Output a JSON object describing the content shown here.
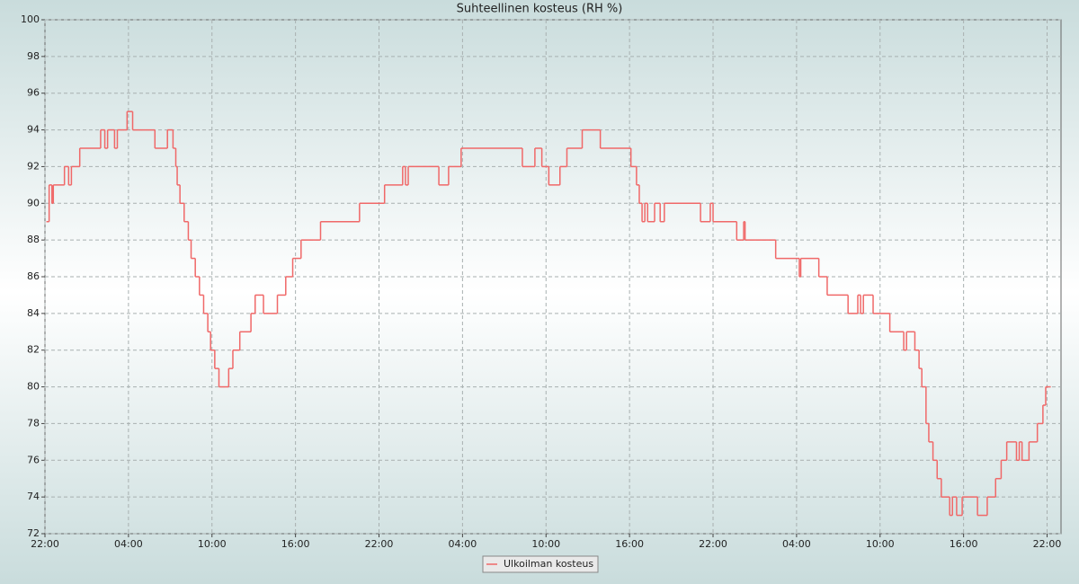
{
  "chart_data": {
    "type": "step-line",
    "title": "Suhteellinen kosteus (RH %)",
    "xlim": [
      0,
      73
    ],
    "xticks": [
      {
        "value": 0,
        "label": "22:00"
      },
      {
        "value": 6,
        "label": "04:00"
      },
      {
        "value": 12,
        "label": "10:00"
      },
      {
        "value": 18,
        "label": "16:00"
      },
      {
        "value": 24,
        "label": "22:00"
      },
      {
        "value": 30,
        "label": "04:00"
      },
      {
        "value": 36,
        "label": "10:00"
      },
      {
        "value": 42,
        "label": "16:00"
      },
      {
        "value": 48,
        "label": "22:00"
      },
      {
        "value": 54,
        "label": "04:00"
      },
      {
        "value": 60,
        "label": "10:00"
      },
      {
        "value": 66,
        "label": "16:00"
      },
      {
        "value": 72,
        "label": "22:00"
      }
    ],
    "ylim": [
      72,
      100
    ],
    "yticks": [
      72,
      74,
      76,
      78,
      80,
      82,
      84,
      86,
      88,
      90,
      92,
      94,
      96,
      98,
      100
    ],
    "grid": true,
    "legend": "bottom",
    "x": [
      0.1,
      0.3,
      0.5,
      0.6,
      1.4,
      1.7,
      1.9,
      2.5,
      4.0,
      4.3,
      4.5,
      5.0,
      5.2,
      5.9,
      6.3,
      7.9,
      8.8,
      9.2,
      9.4,
      9.5,
      9.7,
      10.0,
      10.3,
      10.5,
      10.8,
      11.1,
      11.4,
      11.7,
      11.9,
      12.2,
      12.5,
      13.2,
      13.5,
      14.0,
      14.8,
      15.1,
      15.7,
      16.7,
      17.3,
      17.8,
      18.4,
      19.8,
      22.6,
      24.4,
      25.7,
      25.9,
      26.1,
      28.3,
      29.0,
      29.9,
      34.3,
      35.2,
      35.7,
      36.2,
      37.0,
      37.5,
      38.6,
      39.9,
      42.1,
      42.5,
      42.7,
      42.9,
      43.1,
      43.3,
      43.8,
      44.2,
      44.5,
      47.1,
      47.8,
      48.0,
      49.7,
      50.2,
      50.3,
      52.5,
      54.2,
      54.3,
      55.6,
      56.2,
      57.7,
      58.4,
      58.6,
      58.8,
      59.5,
      60.7,
      61.7,
      61.9,
      62.5,
      62.8,
      63.0,
      63.3,
      63.5,
      63.8,
      64.1,
      64.4,
      65.0,
      65.2,
      65.5,
      65.9,
      67.0,
      67.7,
      68.3,
      68.7,
      69.1,
      69.8,
      70.0,
      70.2,
      70.7,
      71.3,
      71.7,
      71.9,
      72.2
    ],
    "series": [
      {
        "name": "Ulkoilman kosteus",
        "color": "#f06868",
        "values": [
          89,
          91,
          90,
          91,
          92,
          91,
          92,
          93,
          94,
          93,
          94,
          93,
          94,
          95,
          94,
          93,
          94,
          93,
          92,
          91,
          90,
          89,
          88,
          87,
          86,
          85,
          84,
          83,
          82,
          81,
          80,
          81,
          82,
          83,
          84,
          85,
          84,
          85,
          86,
          87,
          88,
          89,
          90,
          91,
          92,
          91,
          92,
          91,
          92,
          93,
          92,
          93,
          92,
          91,
          92,
          93,
          94,
          93,
          92,
          91,
          90,
          89,
          90,
          89,
          90,
          89,
          90,
          89,
          90,
          89,
          88,
          89,
          88,
          87,
          86,
          87,
          86,
          85,
          84,
          85,
          84,
          85,
          84,
          83,
          82,
          83,
          82,
          81,
          80,
          78,
          77,
          76,
          75,
          74,
          73,
          74,
          73,
          74,
          73,
          74,
          75,
          76,
          77,
          76,
          77,
          76,
          77,
          78,
          79,
          80,
          80
        ]
      }
    ]
  }
}
